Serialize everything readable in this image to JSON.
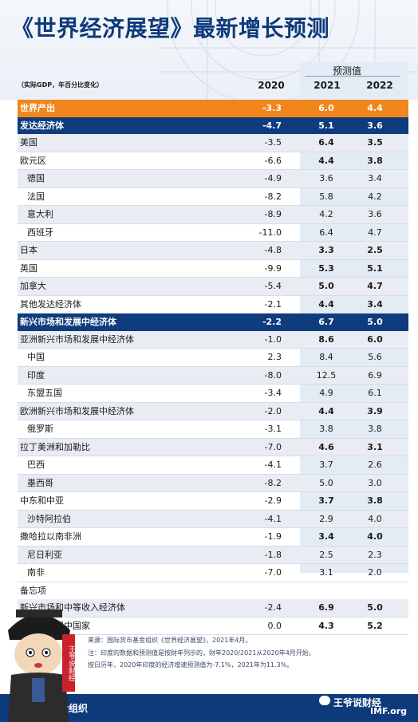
{
  "title": "《世界经济展望》最新增长预测",
  "projection_label": "预测值",
  "unit_note": "（实际GDP，年百分比变化）",
  "years": [
    "2020",
    "2021",
    "2022"
  ],
  "rows": [
    {
      "name": "世界产出",
      "v": [
        "-3.3",
        "6.0",
        "4.4"
      ],
      "style": "world"
    },
    {
      "name": "发达经济体",
      "v": [
        "-4.7",
        "5.1",
        "3.6"
      ],
      "style": "blue"
    },
    {
      "name": "美国",
      "v": [
        "-3.5",
        "6.4",
        "3.5"
      ],
      "style": "gray"
    },
    {
      "name": "欧元区",
      "v": [
        "-6.6",
        "4.4",
        "3.8"
      ],
      "style": ""
    },
    {
      "name": "德国",
      "v": [
        "-4.9",
        "3.6",
        "3.4"
      ],
      "style": "sub gray"
    },
    {
      "name": "法国",
      "v": [
        "-8.2",
        "5.8",
        "4.2"
      ],
      "style": "sub"
    },
    {
      "name": "意大利",
      "v": [
        "-8.9",
        "4.2",
        "3.6"
      ],
      "style": "sub gray"
    },
    {
      "name": "西班牙",
      "v": [
        "-11.0",
        "6.4",
        "4.7"
      ],
      "style": "sub"
    },
    {
      "name": "日本",
      "v": [
        "-4.8",
        "3.3",
        "2.5"
      ],
      "style": "gray"
    },
    {
      "name": "英国",
      "v": [
        "-9.9",
        "5.3",
        "5.1"
      ],
      "style": ""
    },
    {
      "name": "加拿大",
      "v": [
        "-5.4",
        "5.0",
        "4.7"
      ],
      "style": "gray"
    },
    {
      "name": "其他发达经济体",
      "v": [
        "-2.1",
        "4.4",
        "3.4"
      ],
      "style": ""
    },
    {
      "name": "新兴市场和发展中经济体",
      "v": [
        "-2.2",
        "6.7",
        "5.0"
      ],
      "style": "blue"
    },
    {
      "name": "亚洲新兴市场和发展中经济体",
      "v": [
        "-1.0",
        "8.6",
        "6.0"
      ],
      "style": "gray"
    },
    {
      "name": "中国",
      "v": [
        "2.3",
        "8.4",
        "5.6"
      ],
      "style": "sub"
    },
    {
      "name": "印度",
      "v": [
        "-8.0",
        "12.5",
        "6.9"
      ],
      "style": "sub gray"
    },
    {
      "name": "东盟五国",
      "v": [
        "-3.4",
        "4.9",
        "6.1"
      ],
      "style": "sub"
    },
    {
      "name": "欧洲新兴市场和发展中经济体",
      "v": [
        "-2.0",
        "4.4",
        "3.9"
      ],
      "style": "gray"
    },
    {
      "name": "俄罗斯",
      "v": [
        "-3.1",
        "3.8",
        "3.8"
      ],
      "style": "sub"
    },
    {
      "name": "拉丁美洲和加勒比",
      "v": [
        "-7.0",
        "4.6",
        "3.1"
      ],
      "style": "gray"
    },
    {
      "name": "巴西",
      "v": [
        "-4.1",
        "3.7",
        "2.6"
      ],
      "style": "sub"
    },
    {
      "name": "墨西哥",
      "v": [
        "-8.2",
        "5.0",
        "3.0"
      ],
      "style": "sub gray"
    },
    {
      "name": "中东和中亚",
      "v": [
        "-2.9",
        "3.7",
        "3.8"
      ],
      "style": ""
    },
    {
      "name": "沙特阿拉伯",
      "v": [
        "-4.1",
        "2.9",
        "4.0"
      ],
      "style": "sub gray"
    },
    {
      "name": "撒哈拉以南非洲",
      "v": [
        "-1.9",
        "3.4",
        "4.0"
      ],
      "style": ""
    },
    {
      "name": "尼日利亚",
      "v": [
        "-1.8",
        "2.5",
        "2.3"
      ],
      "style": "sub gray"
    },
    {
      "name": "南非",
      "v": [
        "-7.0",
        "3.1",
        "2.0"
      ],
      "style": "sub"
    },
    {
      "name": "备忘项",
      "v": [
        "",
        "",
        ""
      ],
      "style": "note"
    },
    {
      "name": "新兴市场和中等收入经济体",
      "v": [
        "-2.4",
        "6.9",
        "5.0"
      ],
      "style": "gray"
    },
    {
      "name": "低收入发展中国家",
      "v": [
        "0.0",
        "4.3",
        "5.2"
      ],
      "style": ""
    }
  ],
  "footnotes": [
    "来源：国际货币基金组织《世界经济展望》，2021年4月。",
    "注：印度的数据和预测值是按财年列示的，财年2020/2021从2020年4月开始。",
    "按日历年，2020年印度的经济增速预测值为-7.1%，2021年为11.3%。"
  ],
  "org_name": "国际货币基金组织",
  "imf_logo": "IMF.org",
  "watermark": "王爷说财经",
  "seal_text": "王爷说财经"
}
